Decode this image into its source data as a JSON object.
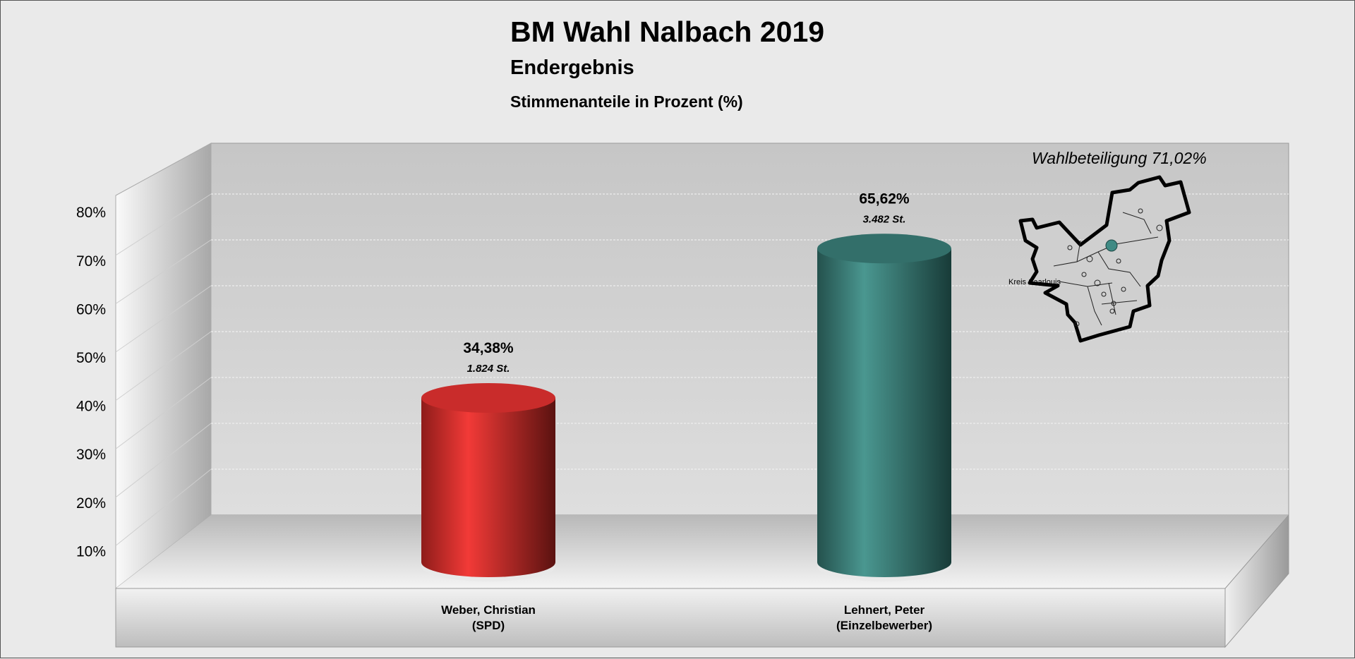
{
  "chart_data": {
    "type": "bar",
    "style": "3d-cylinder",
    "title": "BM Wahl Nalbach 2019",
    "subtitle": "Endergebnis",
    "ylabel": "Stimmenanteile in Prozent (%)",
    "annotation": "Wahlbeteiligung 71,02%",
    "map_label": "Kreis Saarlouis",
    "ylim": [
      0,
      80
    ],
    "yticks": [
      "10%",
      "20%",
      "30%",
      "40%",
      "50%",
      "60%",
      "70%",
      "80%"
    ],
    "grid": true,
    "categories": [
      {
        "name": "Weber, Christian",
        "party": "(SPD)"
      },
      {
        "name": "Lehnert, Peter",
        "party": "(Einzelbewerber)"
      }
    ],
    "values": [
      34.38,
      65.62
    ],
    "value_labels": [
      "34,38%",
      "65,62%"
    ],
    "votes_labels": [
      "1.824 St.",
      "3.482 St."
    ],
    "colors": [
      "#e8302f",
      "#3f8a84"
    ]
  }
}
